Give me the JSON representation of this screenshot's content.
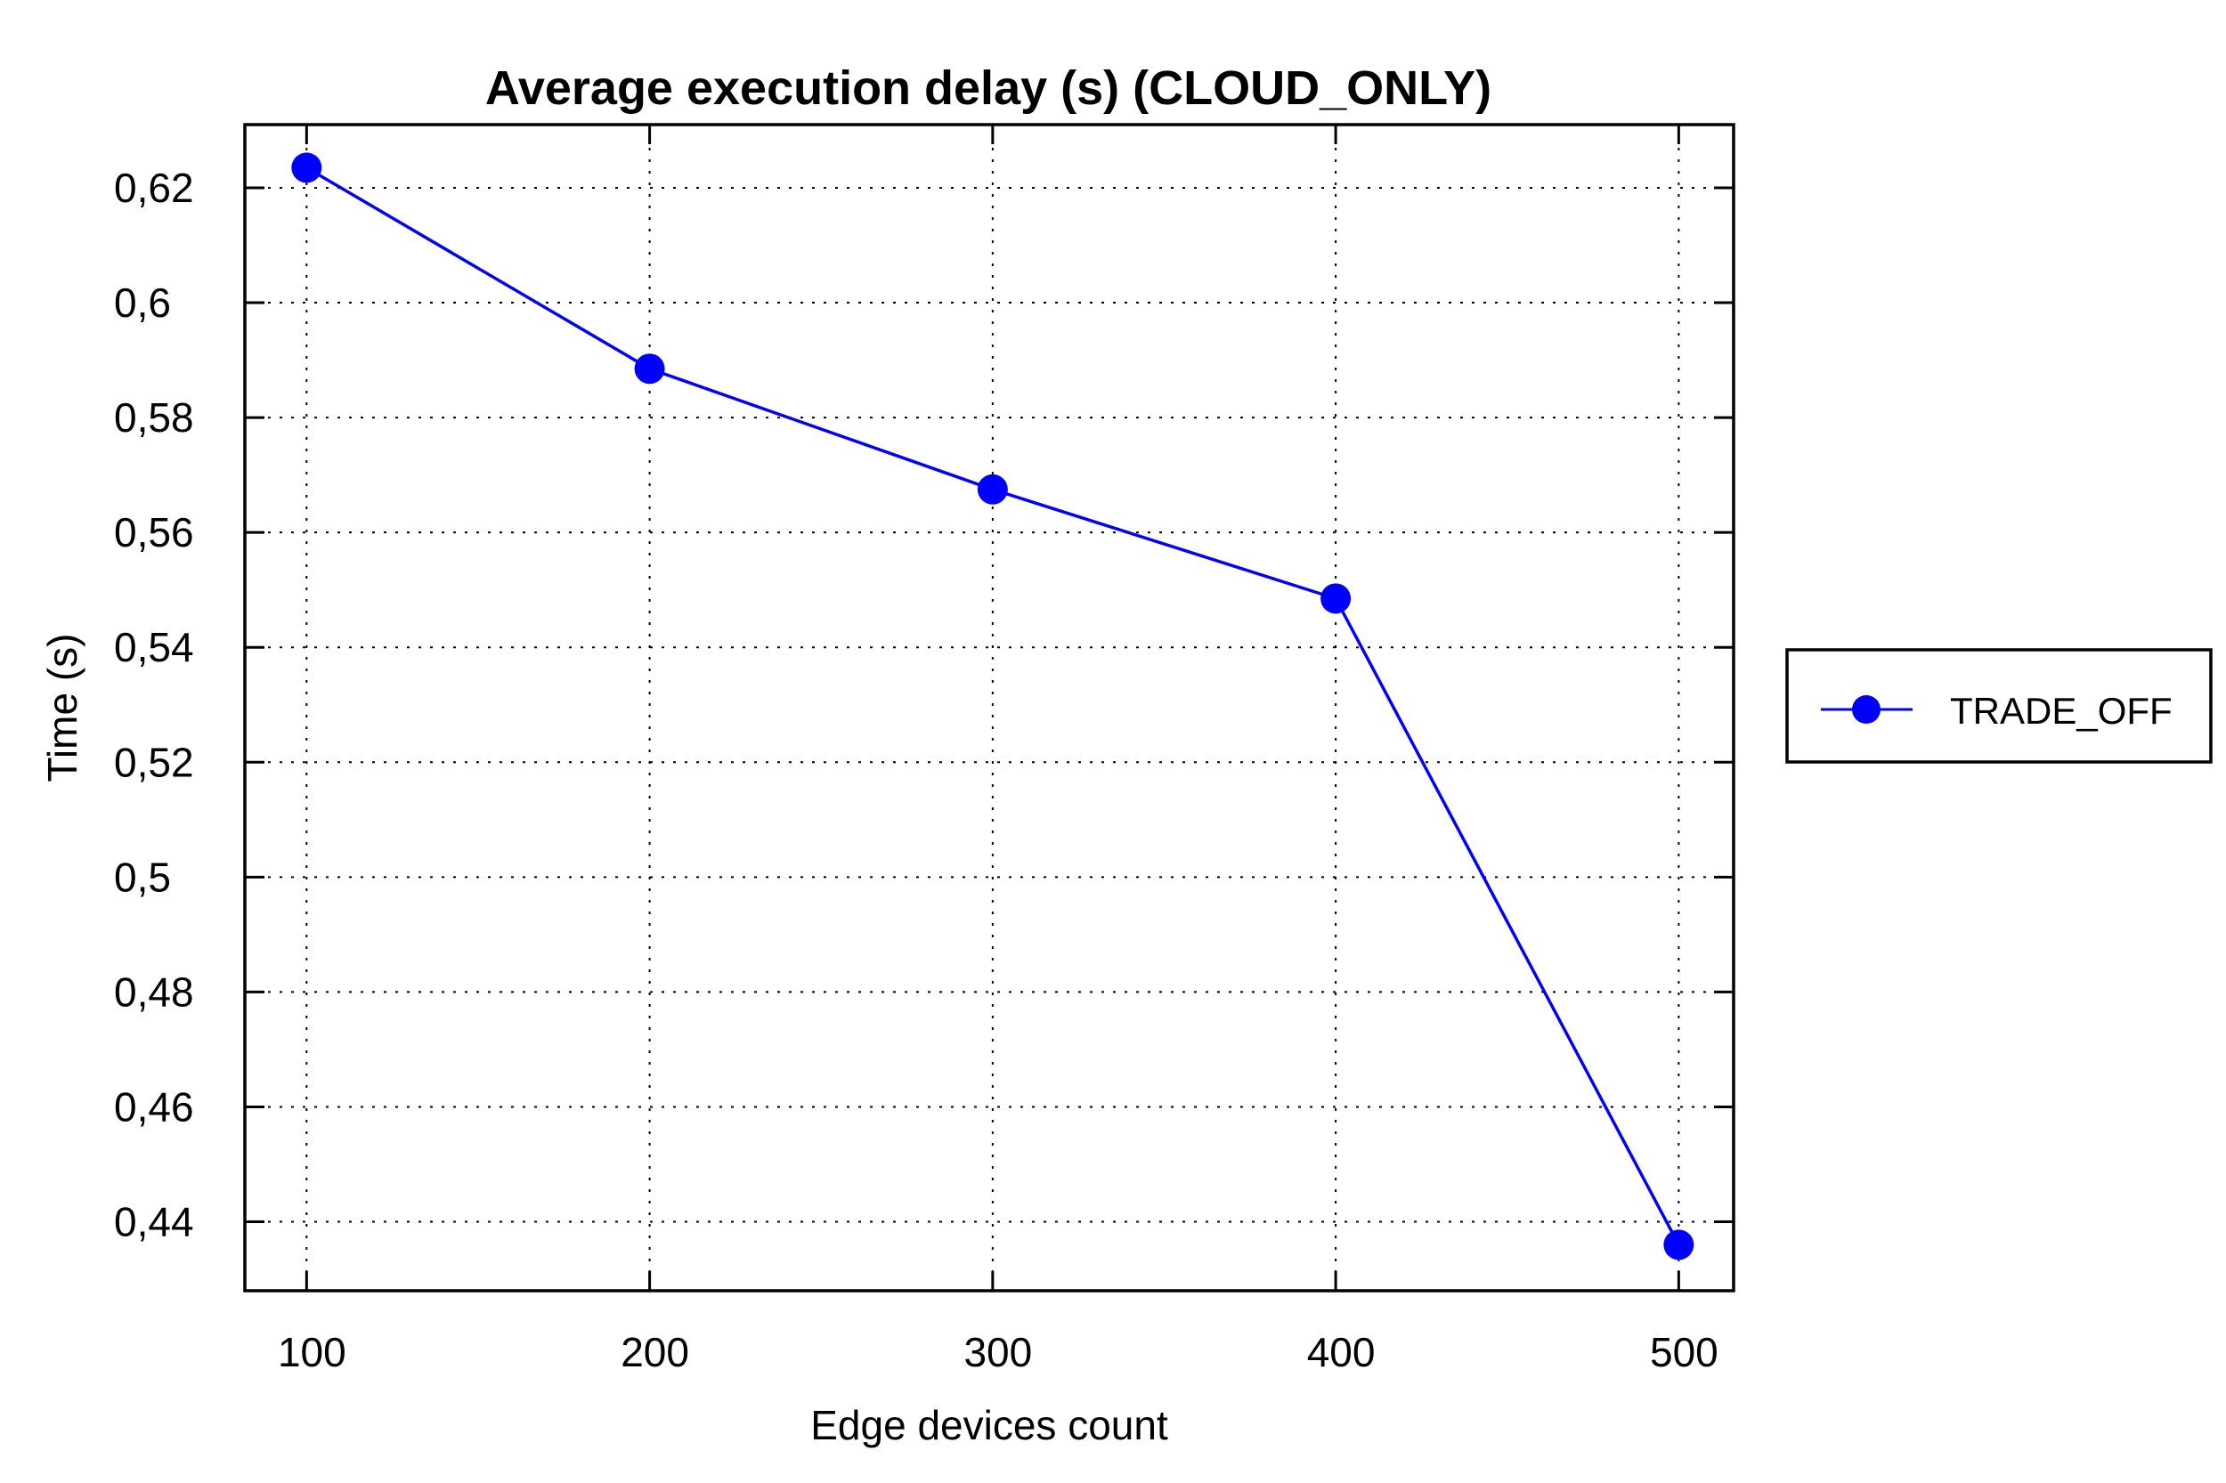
{
  "chart_data": {
    "type": "line",
    "title": "Average execution delay (s) (CLOUD_ONLY)",
    "xlabel": "Edge devices count",
    "ylabel": "Time (s)",
    "x": [
      100,
      200,
      300,
      400,
      500
    ],
    "x_ticks": [
      "100",
      "200",
      "300",
      "400",
      "500"
    ],
    "y_ticks": [
      "0,44",
      "0,46",
      "0,48",
      "0,5",
      "0,52",
      "0,54",
      "0,56",
      "0,58",
      "0,6",
      "0,62"
    ],
    "y_tick_values": [
      0.44,
      0.46,
      0.48,
      0.5,
      0.52,
      0.54,
      0.56,
      0.58,
      0.6,
      0.62
    ],
    "xlim": [
      82,
      516
    ],
    "ylim": [
      0.428,
      0.631
    ],
    "grid": true,
    "legend_position": "right",
    "series": [
      {
        "name": "TRADE_OFF",
        "color": "#0000ff",
        "marker": "circle",
        "values": [
          0.6235,
          0.5885,
          0.5675,
          0.5485,
          0.436
        ]
      }
    ]
  }
}
